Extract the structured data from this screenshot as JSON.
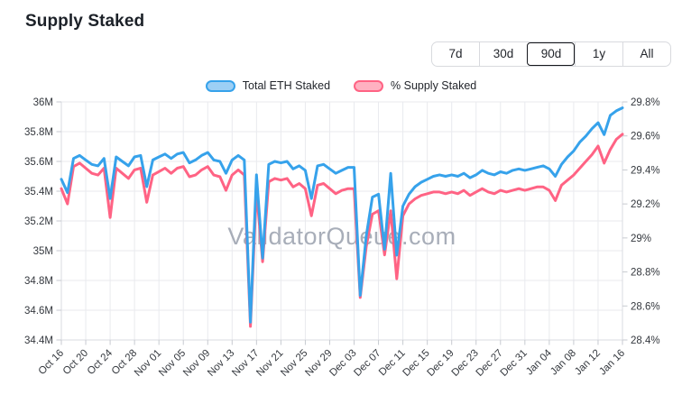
{
  "page": {
    "title": "Supply Staked"
  },
  "range_buttons": {
    "options": [
      "7d",
      "30d",
      "90d",
      "1y",
      "All"
    ],
    "selected": "90d"
  },
  "legend": [
    {
      "label": "Total ETH Staked",
      "color": "#36A2EB",
      "fill": "#9CCFF5"
    },
    {
      "label": "% Supply Staked",
      "color": "#FF6384",
      "fill": "#FFB1C1"
    }
  ],
  "watermark": "ValidatorQueue.com",
  "chart_data": {
    "type": "line",
    "title": "Supply Staked",
    "grid": true,
    "legend_position": "top-center",
    "axes": {
      "left": {
        "min": 34.4,
        "max": 36.0,
        "step": 0.2,
        "unit": "M ETH",
        "labels": [
          "36M",
          "35.8M",
          "35.6M",
          "35.4M",
          "35.2M",
          "35M",
          "34.8M",
          "34.6M",
          "34.4M"
        ],
        "values": [
          36,
          35.8,
          35.6,
          35.4,
          35.2,
          35,
          34.8,
          34.6,
          34.4
        ]
      },
      "right": {
        "min": 28.4,
        "max": 29.8,
        "step": 0.2,
        "unit": "%",
        "labels": [
          "29.8%",
          "29.6%",
          "29.4%",
          "29.2%",
          "29%",
          "28.8%",
          "28.6%",
          "28.4%"
        ],
        "values": [
          29.8,
          29.6,
          29.4,
          29.2,
          29,
          28.8,
          28.6,
          28.4
        ]
      }
    },
    "x_ticks": {
      "labels": [
        "Oct 16",
        "Oct 20",
        "Oct 24",
        "Oct 28",
        "Nov 01",
        "Nov 05",
        "Nov 09",
        "Nov 13",
        "Nov 17",
        "Nov 21",
        "Nov 25",
        "Nov 29",
        "Dec 03",
        "Dec 07",
        "Dec 11",
        "Dec 15",
        "Dec 19",
        "Dec 23",
        "Dec 27",
        "Dec 31",
        "Jan 04",
        "Jan 08",
        "Jan 12",
        "Jan 16"
      ],
      "days": [
        0,
        4,
        8,
        12,
        16,
        20,
        24,
        28,
        32,
        36,
        40,
        44,
        48,
        52,
        56,
        60,
        64,
        68,
        72,
        76,
        80,
        84,
        88,
        92
      ]
    },
    "dates": [
      "Oct 16",
      "Oct 17",
      "Oct 18",
      "Oct 19",
      "Oct 20",
      "Oct 21",
      "Oct 22",
      "Oct 23",
      "Oct 24",
      "Oct 25",
      "Oct 26",
      "Oct 27",
      "Oct 28",
      "Oct 29",
      "Oct 30",
      "Oct 31",
      "Nov 01",
      "Nov 02",
      "Nov 03",
      "Nov 04",
      "Nov 05",
      "Nov 06",
      "Nov 07",
      "Nov 08",
      "Nov 09",
      "Nov 10",
      "Nov 11",
      "Nov 12",
      "Nov 13",
      "Nov 14",
      "Nov 15",
      "Nov 16",
      "Nov 17",
      "Nov 18",
      "Nov 19",
      "Nov 20",
      "Nov 21",
      "Nov 22",
      "Nov 23",
      "Nov 24",
      "Nov 25",
      "Nov 26",
      "Nov 27",
      "Nov 28",
      "Nov 29",
      "Nov 30",
      "Dec 01",
      "Dec 02",
      "Dec 03",
      "Dec 04",
      "Dec 05",
      "Dec 06",
      "Dec 07",
      "Dec 08",
      "Dec 09",
      "Dec 10",
      "Dec 11",
      "Dec 12",
      "Dec 13",
      "Dec 14",
      "Dec 15",
      "Dec 16",
      "Dec 17",
      "Dec 18",
      "Dec 19",
      "Dec 20",
      "Dec 21",
      "Dec 22",
      "Dec 23",
      "Dec 24",
      "Dec 25",
      "Dec 26",
      "Dec 27",
      "Dec 28",
      "Dec 29",
      "Dec 30",
      "Dec 31",
      "Jan 01",
      "Jan 02",
      "Jan 03",
      "Jan 04",
      "Jan 05",
      "Jan 06",
      "Jan 07",
      "Jan 08",
      "Jan 09",
      "Jan 10",
      "Jan 11",
      "Jan 12",
      "Jan 13",
      "Jan 14",
      "Jan 15",
      "Jan 16"
    ],
    "series": [
      {
        "name": "Total ETH Staked",
        "axis": "left",
        "color": "#36A2EB",
        "unit": "M ETH",
        "values": [
          35.48,
          35.39,
          35.62,
          35.64,
          35.61,
          35.58,
          35.57,
          35.62,
          35.35,
          35.63,
          35.6,
          35.57,
          35.63,
          35.64,
          35.43,
          35.61,
          35.63,
          35.65,
          35.62,
          35.65,
          35.66,
          35.59,
          35.61,
          35.64,
          35.66,
          35.61,
          35.6,
          35.52,
          35.61,
          35.64,
          35.61,
          34.52,
          35.51,
          34.95,
          35.58,
          35.6,
          35.59,
          35.6,
          35.55,
          35.57,
          35.54,
          35.35,
          35.57,
          35.58,
          35.55,
          35.52,
          35.54,
          35.56,
          35.56,
          34.7,
          35.1,
          35.36,
          35.38,
          35.01,
          35.52,
          34.97,
          35.3,
          35.38,
          35.43,
          35.46,
          35.48,
          35.5,
          35.51,
          35.5,
          35.51,
          35.5,
          35.52,
          35.49,
          35.51,
          35.54,
          35.52,
          35.51,
          35.53,
          35.52,
          35.54,
          35.55,
          35.54,
          35.55,
          35.56,
          35.57,
          35.55,
          35.5,
          35.58,
          35.63,
          35.67,
          35.73,
          35.77,
          35.82,
          35.86,
          35.78,
          35.91,
          35.94,
          35.96
        ]
      },
      {
        "name": "% Supply Staked",
        "axis": "right",
        "color": "#FF6384",
        "unit": "%",
        "values": [
          29.29,
          29.2,
          29.42,
          29.44,
          29.41,
          29.38,
          29.37,
          29.41,
          29.12,
          29.41,
          29.38,
          29.35,
          29.4,
          29.41,
          29.21,
          29.37,
          29.39,
          29.41,
          29.38,
          29.41,
          29.42,
          29.36,
          29.37,
          29.4,
          29.42,
          29.37,
          29.36,
          29.28,
          29.37,
          29.4,
          29.37,
          28.48,
          29.28,
          28.86,
          29.33,
          29.35,
          29.34,
          29.35,
          29.3,
          29.32,
          29.29,
          29.13,
          29.31,
          29.32,
          29.29,
          29.26,
          29.28,
          29.29,
          29.29,
          28.65,
          28.95,
          29.14,
          29.16,
          28.9,
          29.16,
          28.76,
          29.13,
          29.2,
          29.23,
          29.25,
          29.26,
          29.27,
          29.27,
          29.26,
          29.27,
          29.26,
          29.28,
          29.25,
          29.27,
          29.29,
          29.27,
          29.26,
          29.28,
          29.27,
          29.28,
          29.29,
          29.28,
          29.29,
          29.3,
          29.3,
          29.28,
          29.22,
          29.31,
          29.34,
          29.37,
          29.41,
          29.45,
          29.49,
          29.54,
          29.44,
          29.52,
          29.58,
          29.61
        ]
      }
    ]
  }
}
